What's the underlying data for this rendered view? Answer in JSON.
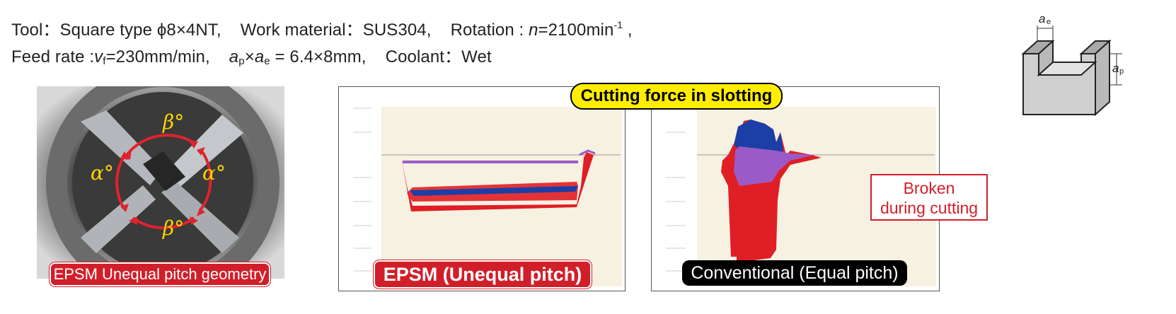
{
  "conditions": {
    "line1": {
      "tool_label": "Tool：Square type ",
      "tool_value": "ϕ8×4NT,",
      "material": "Work material：SUS304,",
      "rotation_label": "Rotation : ",
      "rotation_n": "n",
      "rotation_value": "=2100min",
      "rotation_exp": "-1",
      "rotation_tail": " ,"
    },
    "line2": {
      "feed_label": "Feed rate :",
      "feed_v": "v",
      "feed_f": "f",
      "feed_value": "=230mm/min,",
      "ap_a": "a",
      "ap_p": "p",
      "times": "×",
      "ae_a": "a",
      "ae_e": "e",
      "depth_value": " = 6.4×8mm,",
      "coolant": "Coolant：Wet"
    }
  },
  "photo": {
    "label": "EPSM Unequal pitch geometry",
    "beta_top": "β°",
    "beta_bottom": "β°",
    "alpha_left": "α°",
    "alpha_right": "α°"
  },
  "chart_title": "Cutting force in slotting",
  "epsm_panel": {
    "label": "EPSM (Unequal pitch)"
  },
  "conventional_panel": {
    "label": "Conventional (Equal pitch)",
    "note_line1": "Broken",
    "note_line2": "during cutting"
  },
  "slot_diagram": {
    "ae_a": "a",
    "ae_e": "e",
    "ap_a": "a",
    "ap_p": "p"
  },
  "colors": {
    "red": "#d11f2a",
    "blue": "#1b3fa6",
    "purple": "#9a5bc8",
    "yellow": "#ffee00"
  }
}
